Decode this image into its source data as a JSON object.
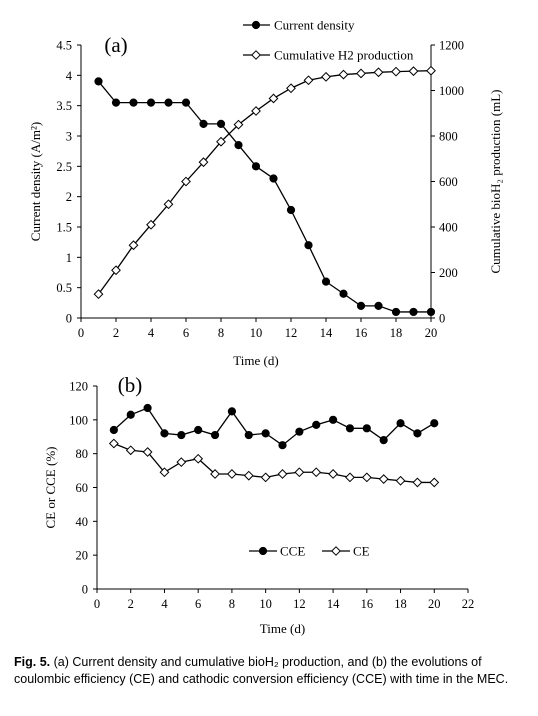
{
  "figure": {
    "caption_label": "Fig. 5.",
    "caption_text": "(a) Current density and cumulative bioH₂ production, and (b) the evolutions of coulombic efficiency (CE) and cathodic conversion efficiency (CCE) with time in the MEC."
  },
  "chart_data": [
    {
      "type": "line",
      "panel_label": "(a)",
      "xlabel": "Time (d)",
      "ylabel": "Current density (A/m²)",
      "y2label": "Cumulative bioH₂ production (mL)",
      "x_ticks": [
        0,
        2,
        4,
        6,
        8,
        10,
        12,
        14,
        16,
        18,
        20
      ],
      "xlim": [
        0,
        20
      ],
      "ylim": [
        0,
        4.5
      ],
      "y_ticks": [
        "0",
        "0.5",
        "1",
        "1.5",
        "2",
        "2.5",
        "3",
        "3.5",
        "4",
        "4.5"
      ],
      "y2lim": [
        0,
        1200
      ],
      "y2_ticks": [
        0,
        200,
        400,
        600,
        800,
        1000,
        1200
      ],
      "grid": false,
      "legend_position": "top-center",
      "series": [
        {
          "name": "Current density",
          "axis": "left",
          "marker": "filled-circle",
          "x": [
            1,
            2,
            3,
            4,
            5,
            6,
            7,
            8,
            9,
            10,
            11,
            12,
            13,
            14,
            15,
            16,
            17,
            18,
            19,
            20
          ],
          "values": [
            3.9,
            3.55,
            3.55,
            3.55,
            3.55,
            3.55,
            3.2,
            3.2,
            2.85,
            2.5,
            2.3,
            1.78,
            1.2,
            0.6,
            0.4,
            0.2,
            0.2,
            0.1,
            0.1,
            0.1
          ]
        },
        {
          "name": "Cumulative H2 production",
          "axis": "right",
          "marker": "open-diamond",
          "x": [
            1,
            2,
            3,
            4,
            5,
            6,
            7,
            8,
            9,
            10,
            11,
            12,
            13,
            14,
            15,
            16,
            17,
            18,
            19,
            20
          ],
          "values": [
            105,
            210,
            320,
            410,
            500,
            600,
            685,
            775,
            850,
            910,
            965,
            1010,
            1045,
            1060,
            1070,
            1075,
            1080,
            1083,
            1085,
            1087
          ]
        }
      ]
    },
    {
      "type": "line",
      "panel_label": "(b)",
      "xlabel": "Time (d)",
      "ylabel": "CE or CCE (%)",
      "x_ticks": [
        0,
        2,
        4,
        6,
        8,
        10,
        12,
        14,
        16,
        18,
        20,
        22
      ],
      "xlim": [
        0,
        22
      ],
      "ylim": [
        0,
        120
      ],
      "y_ticks": [
        0,
        20,
        40,
        60,
        80,
        100,
        120
      ],
      "grid": false,
      "legend_position": "bottom-center",
      "series": [
        {
          "name": "CCE",
          "marker": "filled-circle",
          "x": [
            1,
            2,
            3,
            4,
            5,
            6,
            7,
            8,
            9,
            10,
            11,
            12,
            13,
            14,
            15,
            16,
            17,
            18,
            19,
            20
          ],
          "values": [
            94,
            103,
            107,
            92,
            91,
            94,
            91,
            105,
            91,
            92,
            85,
            93,
            97,
            100,
            95,
            95,
            88,
            98,
            92,
            98
          ]
        },
        {
          "name": "CE",
          "marker": "open-diamond",
          "x": [
            1,
            2,
            3,
            4,
            5,
            6,
            7,
            8,
            9,
            10,
            11,
            12,
            13,
            14,
            15,
            16,
            17,
            18,
            19,
            20
          ],
          "values": [
            86,
            82,
            81,
            69,
            75,
            77,
            68,
            68,
            67,
            66,
            68,
            69,
            69,
            68,
            66,
            66,
            65,
            64,
            63,
            63
          ]
        }
      ]
    }
  ]
}
